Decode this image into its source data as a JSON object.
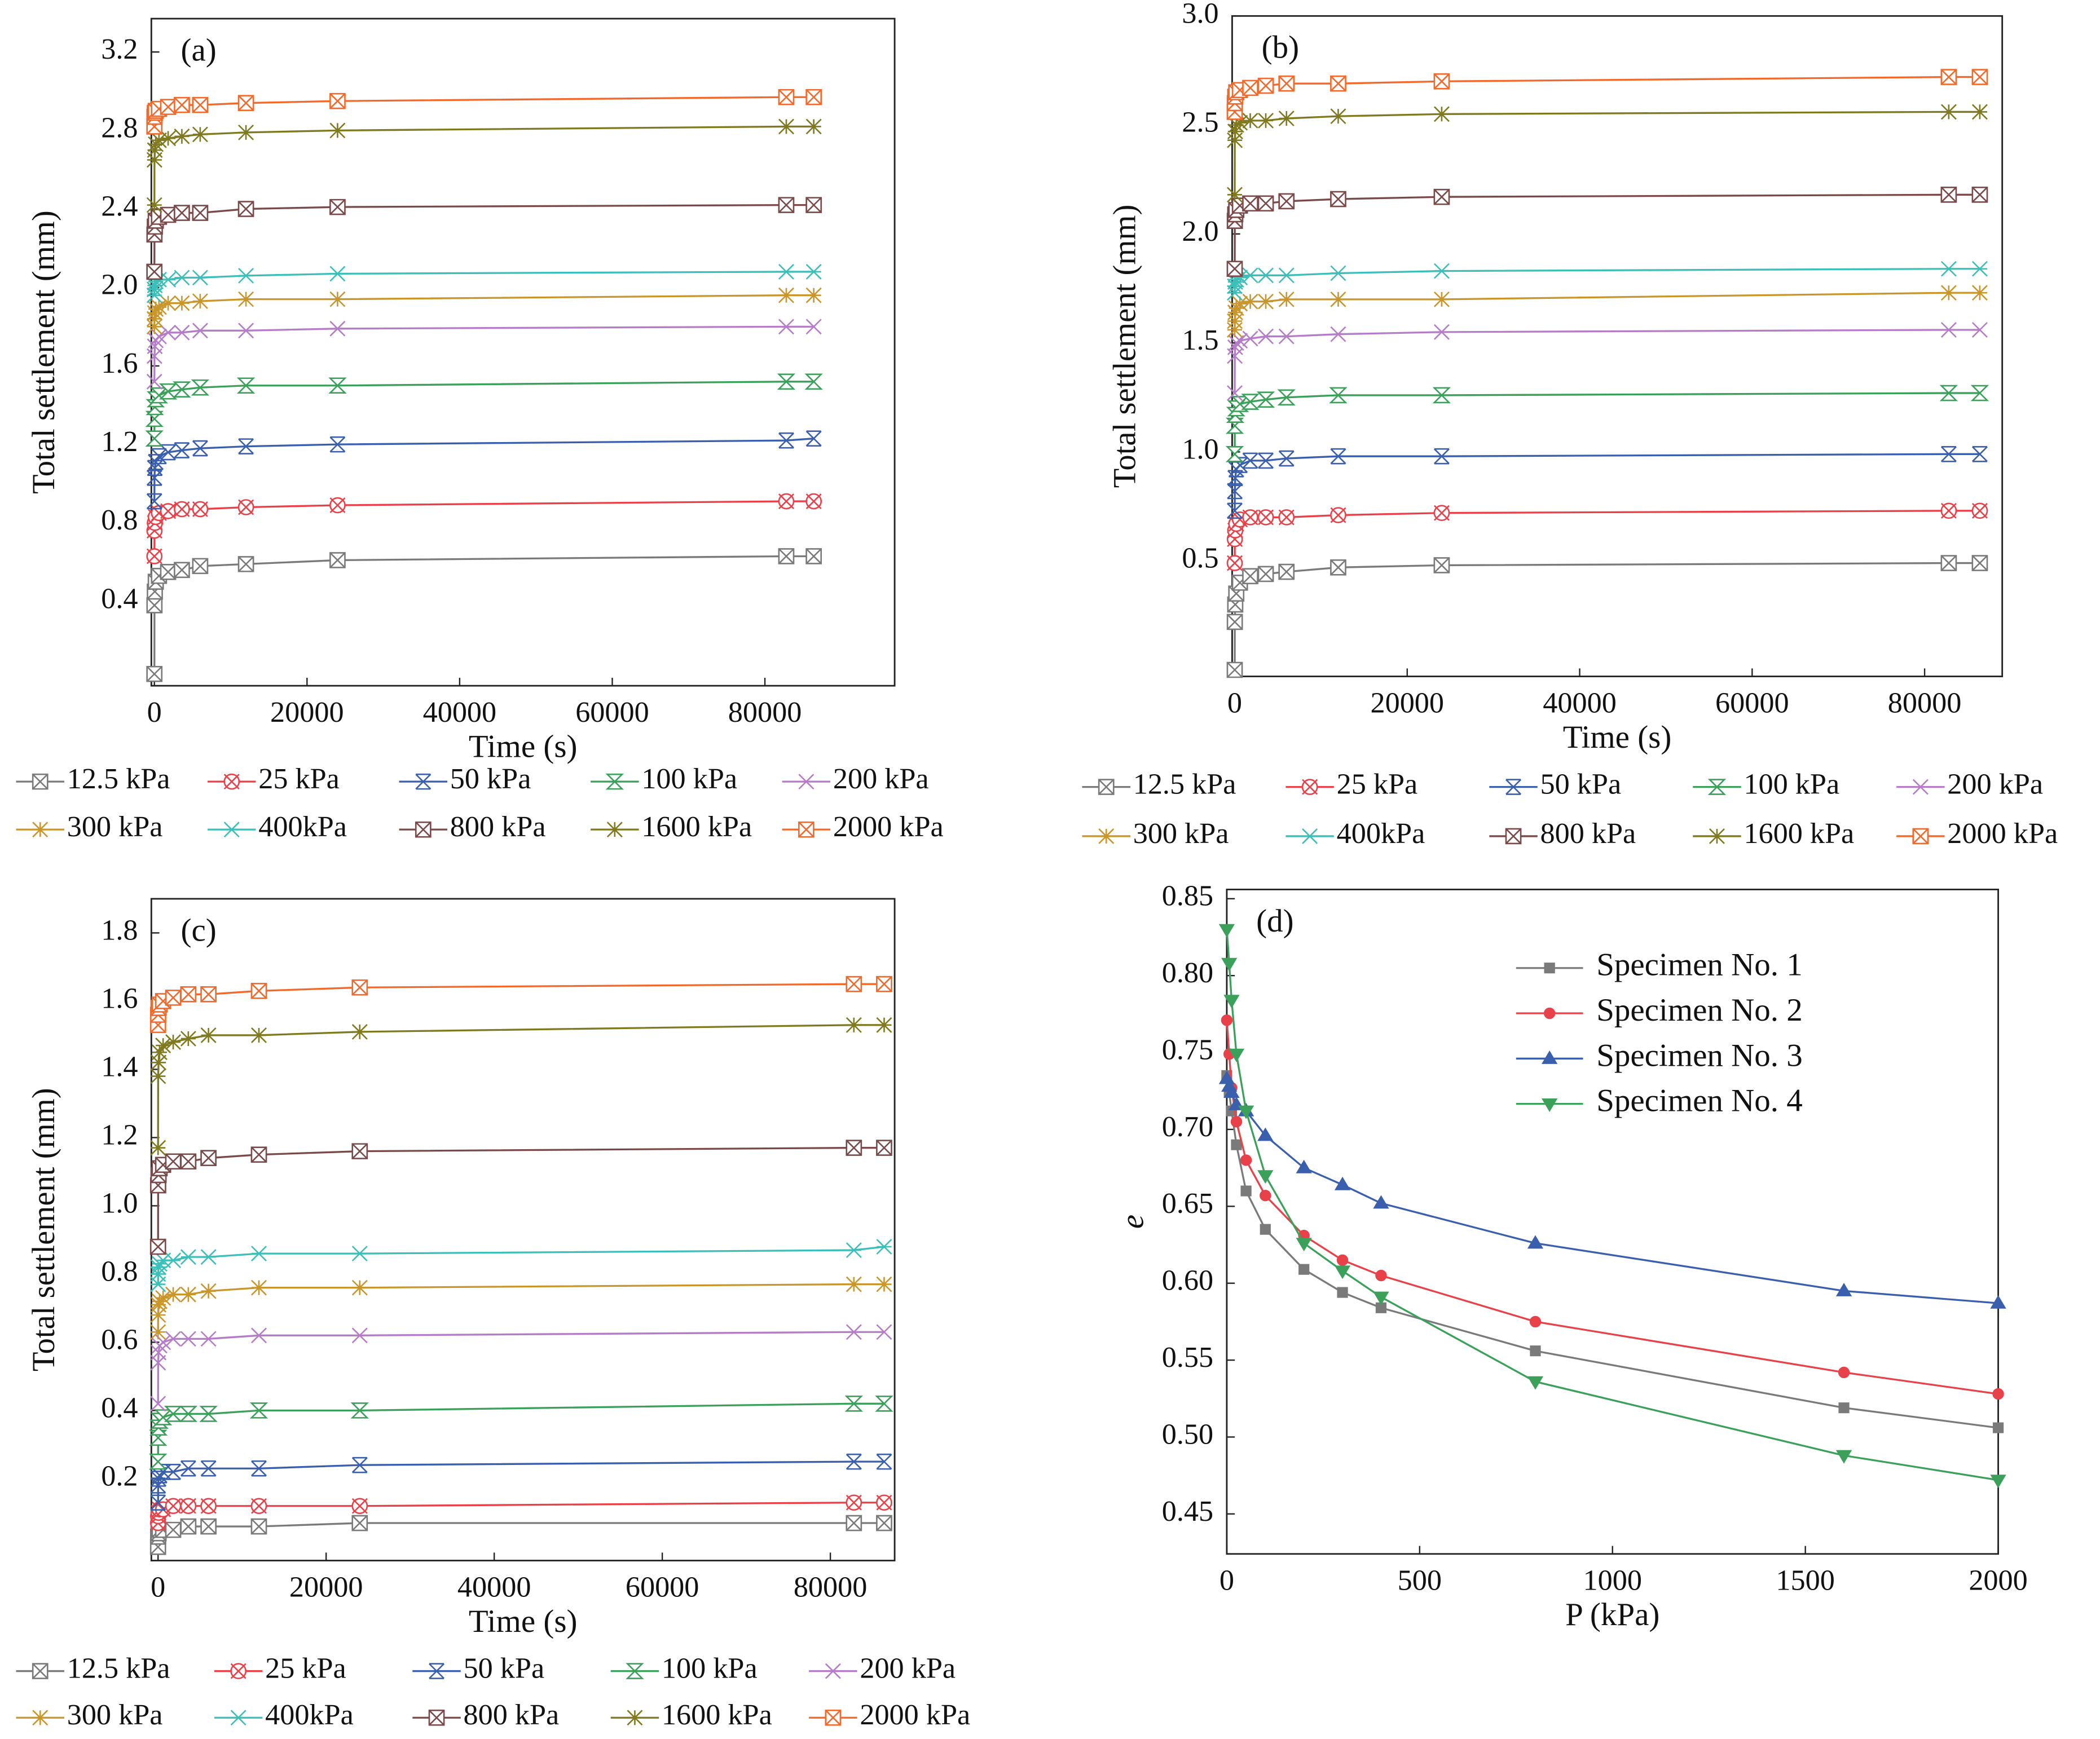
{
  "chart_data": [
    {
      "type": "line",
      "annotation": "(a)",
      "x_label": "Time (s)",
      "y_label": "Total settlement (mm)",
      "xlim": [
        -400,
        97000
      ],
      "ylim": [
        -0.03,
        3.37
      ],
      "xticks": [
        0,
        20000,
        40000,
        60000,
        80000
      ],
      "yticks": [
        0.4,
        0.8,
        1.2,
        1.6,
        {
          "value": 2,
          "label": "2.0"
        },
        2.4,
        2.8,
        3.2
      ],
      "x": [
        0,
        10,
        60,
        180,
        600,
        1800,
        3600,
        6000,
        12000,
        24000,
        82800,
        86400
      ],
      "series": [
        {
          "name": "12.5 kPa",
          "color": "#7a7a7a",
          "marker": "square-x",
          "values": [
            0.03,
            0.38,
            0.45,
            0.5,
            0.53,
            0.55,
            0.56,
            0.58,
            0.59,
            0.61,
            0.63,
            0.63
          ]
        },
        {
          "name": "25 kPa",
          "color": "#e8414a",
          "marker": "circle-x",
          "values": [
            0.63,
            0.76,
            0.8,
            0.83,
            0.85,
            0.86,
            0.87,
            0.87,
            0.88,
            0.89,
            0.91,
            0.91
          ]
        },
        {
          "name": "50 kPa",
          "color": "#3a5fad",
          "marker": "x-bar",
          "values": [
            0.91,
            1.03,
            1.08,
            1.11,
            1.14,
            1.16,
            1.17,
            1.18,
            1.19,
            1.2,
            1.22,
            1.23
          ]
        },
        {
          "name": "100 kPa",
          "color": "#3aa05a",
          "marker": "hourglass",
          "values": [
            1.23,
            1.33,
            1.39,
            1.43,
            1.45,
            1.47,
            1.48,
            1.49,
            1.5,
            1.5,
            1.52,
            1.52
          ]
        },
        {
          "name": "200 kPa",
          "color": "#b57cc7",
          "marker": "x",
          "values": [
            1.52,
            1.65,
            1.7,
            1.73,
            1.75,
            1.77,
            1.77,
            1.78,
            1.78,
            1.79,
            1.8,
            1.8
          ]
        },
        {
          "name": "300 kPa",
          "color": "#c8962a",
          "marker": "asterisk",
          "values": [
            1.8,
            1.84,
            1.87,
            1.89,
            1.9,
            1.92,
            1.92,
            1.93,
            1.94,
            1.94,
            1.96,
            1.96
          ]
        },
        {
          "name": "400kPa",
          "color": "#3bbfb8",
          "marker": "x-plus",
          "values": [
            1.96,
            1.99,
            2.01,
            2.03,
            2.04,
            2.04,
            2.05,
            2.05,
            2.06,
            2.07,
            2.08,
            2.08
          ]
        },
        {
          "name": "800 kPa",
          "color": "#7a4a4a",
          "marker": "square-x",
          "values": [
            2.08,
            2.27,
            2.31,
            2.34,
            2.36,
            2.37,
            2.38,
            2.38,
            2.4,
            2.41,
            2.42,
            2.42
          ]
        },
        {
          "name": "1600 kPa",
          "color": "#7f7a1f",
          "marker": "asterisk",
          "values": [
            2.42,
            2.65,
            2.7,
            2.73,
            2.75,
            2.76,
            2.77,
            2.78,
            2.79,
            2.8,
            2.82,
            2.82
          ]
        },
        {
          "name": "2000 kPa",
          "color": "#f26a2b",
          "marker": "square-x",
          "values": [
            2.82,
            2.87,
            2.89,
            2.9,
            2.91,
            2.92,
            2.93,
            2.93,
            2.94,
            2.95,
            2.97,
            2.97
          ]
        }
      ]
    },
    {
      "type": "line",
      "annotation": "(b)",
      "x_label": "Time (s)",
      "y_label": "Total settlement (mm)",
      "xlim": [
        -300,
        89000
      ],
      "ylim": [
        -0.03,
        3.0
      ],
      "xticks": [
        0,
        20000,
        40000,
        60000,
        80000
      ],
      "yticks": [
        0.5,
        {
          "value": 1,
          "label": "1.0"
        },
        1.5,
        {
          "value": 2,
          "label": "2.0"
        },
        2.5,
        {
          "value": 3,
          "label": "3.0"
        }
      ],
      "x": [
        0,
        10,
        60,
        180,
        600,
        1800,
        3600,
        6000,
        12000,
        24000,
        82800,
        86400
      ],
      "series": [
        {
          "name": "12.5 kPa",
          "color": "#7a7a7a",
          "marker": "square-x",
          "values": [
            0.0,
            0.22,
            0.3,
            0.35,
            0.4,
            0.43,
            0.44,
            0.45,
            0.47,
            0.48,
            0.49,
            0.49
          ]
        },
        {
          "name": "25 kPa",
          "color": "#e8414a",
          "marker": "circle-x",
          "values": [
            0.49,
            0.6,
            0.64,
            0.67,
            0.69,
            0.7,
            0.7,
            0.7,
            0.71,
            0.72,
            0.73,
            0.73
          ]
        },
        {
          "name": "50 kPa",
          "color": "#3a5fad",
          "marker": "x-bar",
          "values": [
            0.73,
            0.82,
            0.88,
            0.92,
            0.94,
            0.96,
            0.96,
            0.97,
            0.98,
            0.98,
            0.99,
            0.99
          ]
        },
        {
          "name": "100 kPa",
          "color": "#3aa05a",
          "marker": "hourglass",
          "values": [
            0.99,
            1.12,
            1.17,
            1.2,
            1.22,
            1.23,
            1.24,
            1.25,
            1.26,
            1.26,
            1.27,
            1.27
          ]
        },
        {
          "name": "200 kPa",
          "color": "#b57cc7",
          "marker": "x",
          "values": [
            1.27,
            1.44,
            1.48,
            1.5,
            1.51,
            1.52,
            1.53,
            1.53,
            1.54,
            1.55,
            1.56,
            1.56
          ]
        },
        {
          "name": "300 kPa",
          "color": "#c8962a",
          "marker": "asterisk",
          "values": [
            1.56,
            1.6,
            1.64,
            1.66,
            1.68,
            1.69,
            1.69,
            1.7,
            1.7,
            1.7,
            1.73,
            1.73
          ]
        },
        {
          "name": "400kPa",
          "color": "#3bbfb8",
          "marker": "x-plus",
          "values": [
            1.73,
            1.76,
            1.78,
            1.79,
            1.8,
            1.81,
            1.81,
            1.81,
            1.82,
            1.83,
            1.84,
            1.84
          ]
        },
        {
          "name": "800 kPa",
          "color": "#7a4a4a",
          "marker": "square-x",
          "values": [
            1.84,
            2.06,
            2.09,
            2.11,
            2.13,
            2.14,
            2.14,
            2.15,
            2.16,
            2.17,
            2.18,
            2.18
          ]
        },
        {
          "name": "1600 kPa",
          "color": "#7f7a1f",
          "marker": "asterisk",
          "values": [
            2.18,
            2.43,
            2.47,
            2.5,
            2.51,
            2.52,
            2.52,
            2.53,
            2.54,
            2.55,
            2.56,
            2.56
          ]
        },
        {
          "name": "2000 kPa",
          "color": "#f26a2b",
          "marker": "square-x",
          "values": [
            2.56,
            2.6,
            2.63,
            2.65,
            2.66,
            2.67,
            2.68,
            2.69,
            2.69,
            2.7,
            2.72,
            2.72
          ]
        }
      ]
    },
    {
      "type": "line",
      "annotation": "(c)",
      "x_label": "Time (s)",
      "y_label": "Total settlement (mm)",
      "xlim": [
        -800,
        87650
      ],
      "ylim": [
        -0.04,
        1.9
      ],
      "xticks": [
        0,
        20000,
        40000,
        60000,
        80000
      ],
      "yticks": [
        0.2,
        0.4,
        0.6,
        0.8,
        {
          "value": 1,
          "label": "1.0"
        },
        1.2,
        1.4,
        1.6,
        1.8
      ],
      "x": [
        0,
        10,
        60,
        180,
        600,
        1800,
        3600,
        6000,
        12000,
        24000,
        82800,
        86400
      ],
      "series": [
        {
          "name": "12.5 kPa",
          "color": "#7a7a7a",
          "marker": "square-x",
          "values": [
            0.0,
            0.03,
            0.04,
            0.05,
            0.05,
            0.05,
            0.06,
            0.06,
            0.06,
            0.07,
            0.07,
            0.07
          ]
        },
        {
          "name": "25 kPa",
          "color": "#e8414a",
          "marker": "circle-x",
          "values": [
            0.07,
            0.09,
            0.1,
            0.11,
            0.11,
            0.12,
            0.12,
            0.12,
            0.12,
            0.12,
            0.13,
            0.13
          ]
        },
        {
          "name": "50 kPa",
          "color": "#3a5fad",
          "marker": "x-bar",
          "values": [
            0.13,
            0.18,
            0.2,
            0.21,
            0.22,
            0.22,
            0.23,
            0.23,
            0.23,
            0.24,
            0.25,
            0.25
          ]
        },
        {
          "name": "100 kPa",
          "color": "#3aa05a",
          "marker": "hourglass",
          "values": [
            0.25,
            0.32,
            0.35,
            0.37,
            0.38,
            0.39,
            0.39,
            0.39,
            0.4,
            0.4,
            0.42,
            0.42
          ]
        },
        {
          "name": "200 kPa",
          "color": "#b57cc7",
          "marker": "x",
          "values": [
            0.42,
            0.54,
            0.57,
            0.59,
            0.6,
            0.61,
            0.61,
            0.61,
            0.62,
            0.62,
            0.63,
            0.63
          ]
        },
        {
          "name": "300 kPa",
          "color": "#c8962a",
          "marker": "asterisk",
          "values": [
            0.63,
            0.68,
            0.71,
            0.72,
            0.73,
            0.74,
            0.74,
            0.75,
            0.76,
            0.76,
            0.77,
            0.77
          ]
        },
        {
          "name": "400kPa",
          "color": "#3bbfb8",
          "marker": "x-plus",
          "values": [
            0.77,
            0.8,
            0.82,
            0.83,
            0.84,
            0.84,
            0.85,
            0.85,
            0.86,
            0.86,
            0.87,
            0.88
          ]
        },
        {
          "name": "800 kPa",
          "color": "#7a4a4a",
          "marker": "square-x",
          "values": [
            0.88,
            1.06,
            1.09,
            1.11,
            1.12,
            1.13,
            1.13,
            1.14,
            1.15,
            1.16,
            1.17,
            1.17
          ]
        },
        {
          "name": "1600 kPa",
          "color": "#7f7a1f",
          "marker": "asterisk",
          "values": [
            1.17,
            1.38,
            1.42,
            1.45,
            1.47,
            1.48,
            1.49,
            1.5,
            1.5,
            1.51,
            1.53,
            1.53
          ]
        },
        {
          "name": "2000 kPa",
          "color": "#f26a2b",
          "marker": "square-x",
          "values": [
            1.53,
            1.56,
            1.58,
            1.59,
            1.6,
            1.61,
            1.62,
            1.62,
            1.63,
            1.64,
            1.65,
            1.65
          ]
        }
      ]
    },
    {
      "type": "line",
      "annotation": "(d)",
      "x_label": "P (kPa)",
      "y_label": "e",
      "xlim": [
        0,
        2000
      ],
      "ylim": [
        0.424,
        0.856
      ],
      "xticks": [
        0,
        500,
        1000,
        1500,
        2000
      ],
      "yticks": [
        0.45,
        {
          "value": 0.5,
          "label": "0.50"
        },
        0.55,
        {
          "value": 0.6,
          "label": "0.60"
        },
        0.65,
        {
          "value": 0.7,
          "label": "0.70"
        },
        0.75,
        {
          "value": 0.8,
          "label": "0.80"
        },
        0.85
      ],
      "legend": "upper right",
      "x": [
        0,
        6.25,
        12.5,
        25,
        50,
        100,
        200,
        300,
        400,
        800,
        1600,
        2000
      ],
      "series": [
        {
          "name": "Specimen No. 1",
          "color": "#7a7a7a",
          "marker": "square",
          "values": [
            0.735,
            0.724,
            0.712,
            0.69,
            0.66,
            0.635,
            0.609,
            0.594,
            0.584,
            0.556,
            0.519,
            0.506
          ]
        },
        {
          "name": "Specimen No. 2",
          "color": "#e8414a",
          "marker": "circle",
          "values": [
            0.771,
            0.749,
            0.727,
            0.705,
            0.68,
            0.657,
            0.631,
            0.615,
            0.605,
            0.575,
            0.542,
            0.528
          ]
        },
        {
          "name": "Specimen No. 3",
          "color": "#3a5fad",
          "marker": "triangle-up",
          "values": [
            0.733,
            0.728,
            0.724,
            0.716,
            0.712,
            0.696,
            0.675,
            0.664,
            0.652,
            0.626,
            0.595,
            0.587
          ]
        },
        {
          "name": "Specimen No. 4",
          "color": "#3aa05a",
          "marker": "triangle-down",
          "values": [
            0.83,
            0.808,
            0.784,
            0.749,
            0.712,
            0.67,
            0.626,
            0.608,
            0.591,
            0.536,
            0.488,
            0.472
          ]
        }
      ]
    }
  ]
}
